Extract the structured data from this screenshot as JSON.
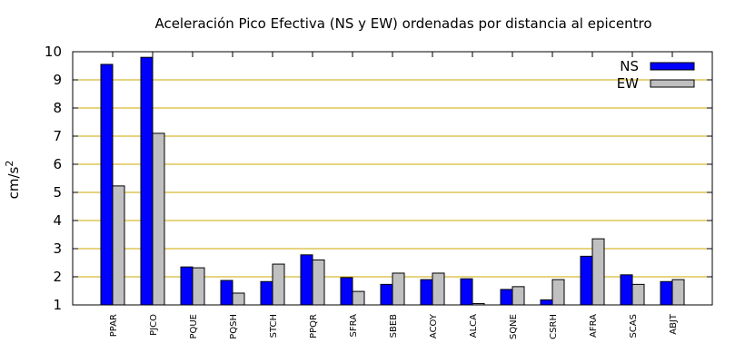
{
  "chart_data": {
    "type": "bar",
    "title": "Aceleración Pico Efectiva (NS y EW) ordenadas por distancia al epicentro",
    "xlabel": "",
    "ylabel": "cm/s",
    "ylabel_superscript": "2",
    "ylim": [
      1,
      10
    ],
    "yticks": [
      1,
      2,
      3,
      4,
      5,
      6,
      7,
      8,
      9,
      10
    ],
    "grid": "horizontal",
    "legend_position": "top-right",
    "categories": [
      "PPAR",
      "PJCO",
      "PQUE",
      "PQSH",
      "STCH",
      "PPQR",
      "SFRA",
      "SBEB",
      "ACOY",
      "ALCA",
      "SQNE",
      "CSRH",
      "AFRA",
      "SCAS",
      "ABJT"
    ],
    "series": [
      {
        "name": "NS",
        "color": "#0000ff",
        "values": [
          9.55,
          9.8,
          2.35,
          1.87,
          1.83,
          2.78,
          1.97,
          1.73,
          1.9,
          1.93,
          1.55,
          1.18,
          2.73,
          2.07,
          1.83
        ]
      },
      {
        "name": "EW",
        "color": "#c0c0c0",
        "values": [
          5.23,
          7.1,
          2.32,
          1.42,
          2.45,
          2.6,
          1.48,
          2.13,
          2.13,
          1.05,
          1.65,
          1.9,
          3.35,
          1.73,
          1.9
        ]
      }
    ],
    "grid_color": "#ccaa00"
  }
}
